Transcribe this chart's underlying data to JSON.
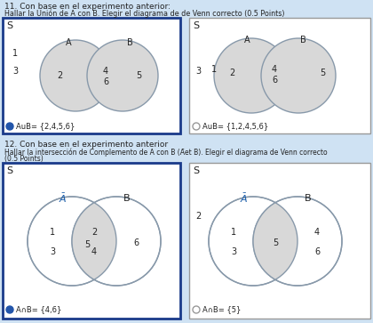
{
  "bg_color": "#cfe2f3",
  "white": "#ffffff",
  "panel_selected_edge": "#1a3a8a",
  "panel_unselected_edge": "#999999",
  "circle_edge": "#8899aa",
  "shade_color": "#d8d8d8",
  "radio_fill": "#2255aa",
  "text_dark": "#222222",
  "text_blue": "#1a5ca8",
  "title11": "11. Con base en el experimento anterior:",
  "sub11": "Hallar la Unión de A con B. Elegir el diagrama de de Venn correcto (0.5 Points)",
  "title12": "12. Con base en el experimento anterior",
  "sub12a": "Hallar la intersección de Complemento de A con B (Āet B). Elegir el diagrama de Venn correcto",
  "sub12b": "(0.5 Points)",
  "label11_opt1": "AuB= {2,4,5,6}",
  "label11_opt2": "AuB= {1,2,4,5,6}",
  "label12_opt1": "A∩B= {4,6}",
  "label12_opt2": "A∩B= {5}"
}
